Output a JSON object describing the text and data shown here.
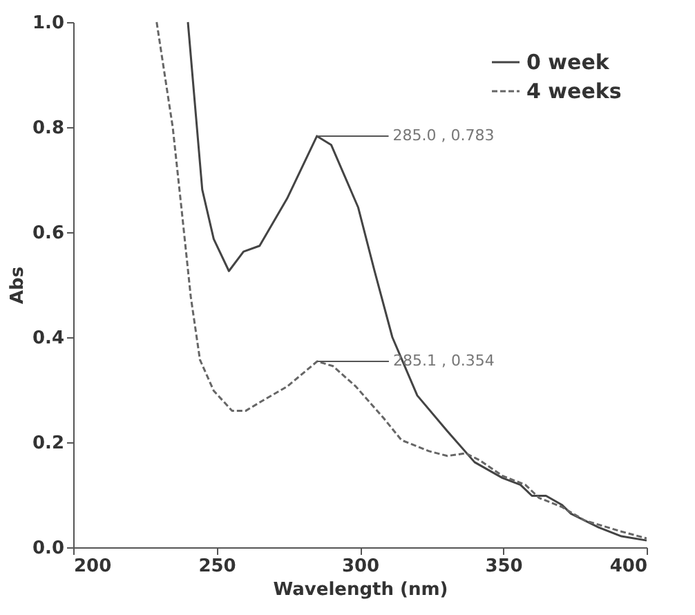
{
  "chart_data": {
    "type": "line",
    "xlabel": "Wavelength (nm)",
    "ylabel": "Abs",
    "xlim": [
      200,
      400
    ],
    "xticks": [
      200,
      250,
      300,
      350,
      400
    ],
    "ylim": [
      0,
      1.0
    ],
    "yticks": [
      {
        "value": 0,
        "label": "0.0"
      },
      {
        "value": 0.2,
        "label": "0.2"
      },
      {
        "value": 0.4,
        "label": "0.4"
      },
      {
        "value": 0.6,
        "label": "0.6"
      },
      {
        "value": 0.8,
        "label": "0.8"
      },
      {
        "value": 1.0,
        "label": "1.0"
      }
    ],
    "grid": false,
    "legend": "top right",
    "marker": "none",
    "series": [
      {
        "name": "0 week",
        "color": "#444444",
        "line_style": "solid",
        "x": [
          240,
          245,
          249,
          254.3,
          259.4,
          265,
          274.6,
          285,
          290,
          299.4,
          305,
          311.3,
          320,
          330.5,
          340,
          349.7,
          356,
          360,
          364.9,
          370.4,
          373.6,
          383.2,
          391.2,
          400
        ],
        "values": [
          1.0,
          0.681,
          0.587,
          0.526,
          0.563,
          0.574,
          0.664,
          0.783,
          0.766,
          0.647,
          0.528,
          0.4,
          0.289,
          0.221,
          0.162,
          0.132,
          0.119,
          0.098,
          0.098,
          0.081,
          0.064,
          0.038,
          0.021,
          0.013
        ]
      },
      {
        "name": "4 weeks",
        "color": "#666666",
        "line_style": "dashed",
        "x": [
          229.1,
          234.7,
          237.9,
          241,
          244.2,
          249,
          255.4,
          260.2,
          266.6,
          274.6,
          285.1,
          290.6,
          298.6,
          308.1,
          314.5,
          324.1,
          330.5,
          336.9,
          341.7,
          349.7,
          357.7,
          362.5,
          370.4,
          378.4,
          391.2,
          400
        ],
        "values": [
          1.0,
          0.8,
          0.638,
          0.477,
          0.357,
          0.298,
          0.26,
          0.26,
          0.281,
          0.306,
          0.354,
          0.345,
          0.306,
          0.247,
          0.204,
          0.183,
          0.174,
          0.179,
          0.166,
          0.136,
          0.119,
          0.094,
          0.077,
          0.051,
          0.03,
          0.017
        ]
      }
    ],
    "annotations": [
      {
        "text": "285.0 , 0.783",
        "x": 285,
        "y": 0.783
      },
      {
        "text": "285.1 , 0.354",
        "x": 285.1,
        "y": 0.354
      }
    ]
  }
}
